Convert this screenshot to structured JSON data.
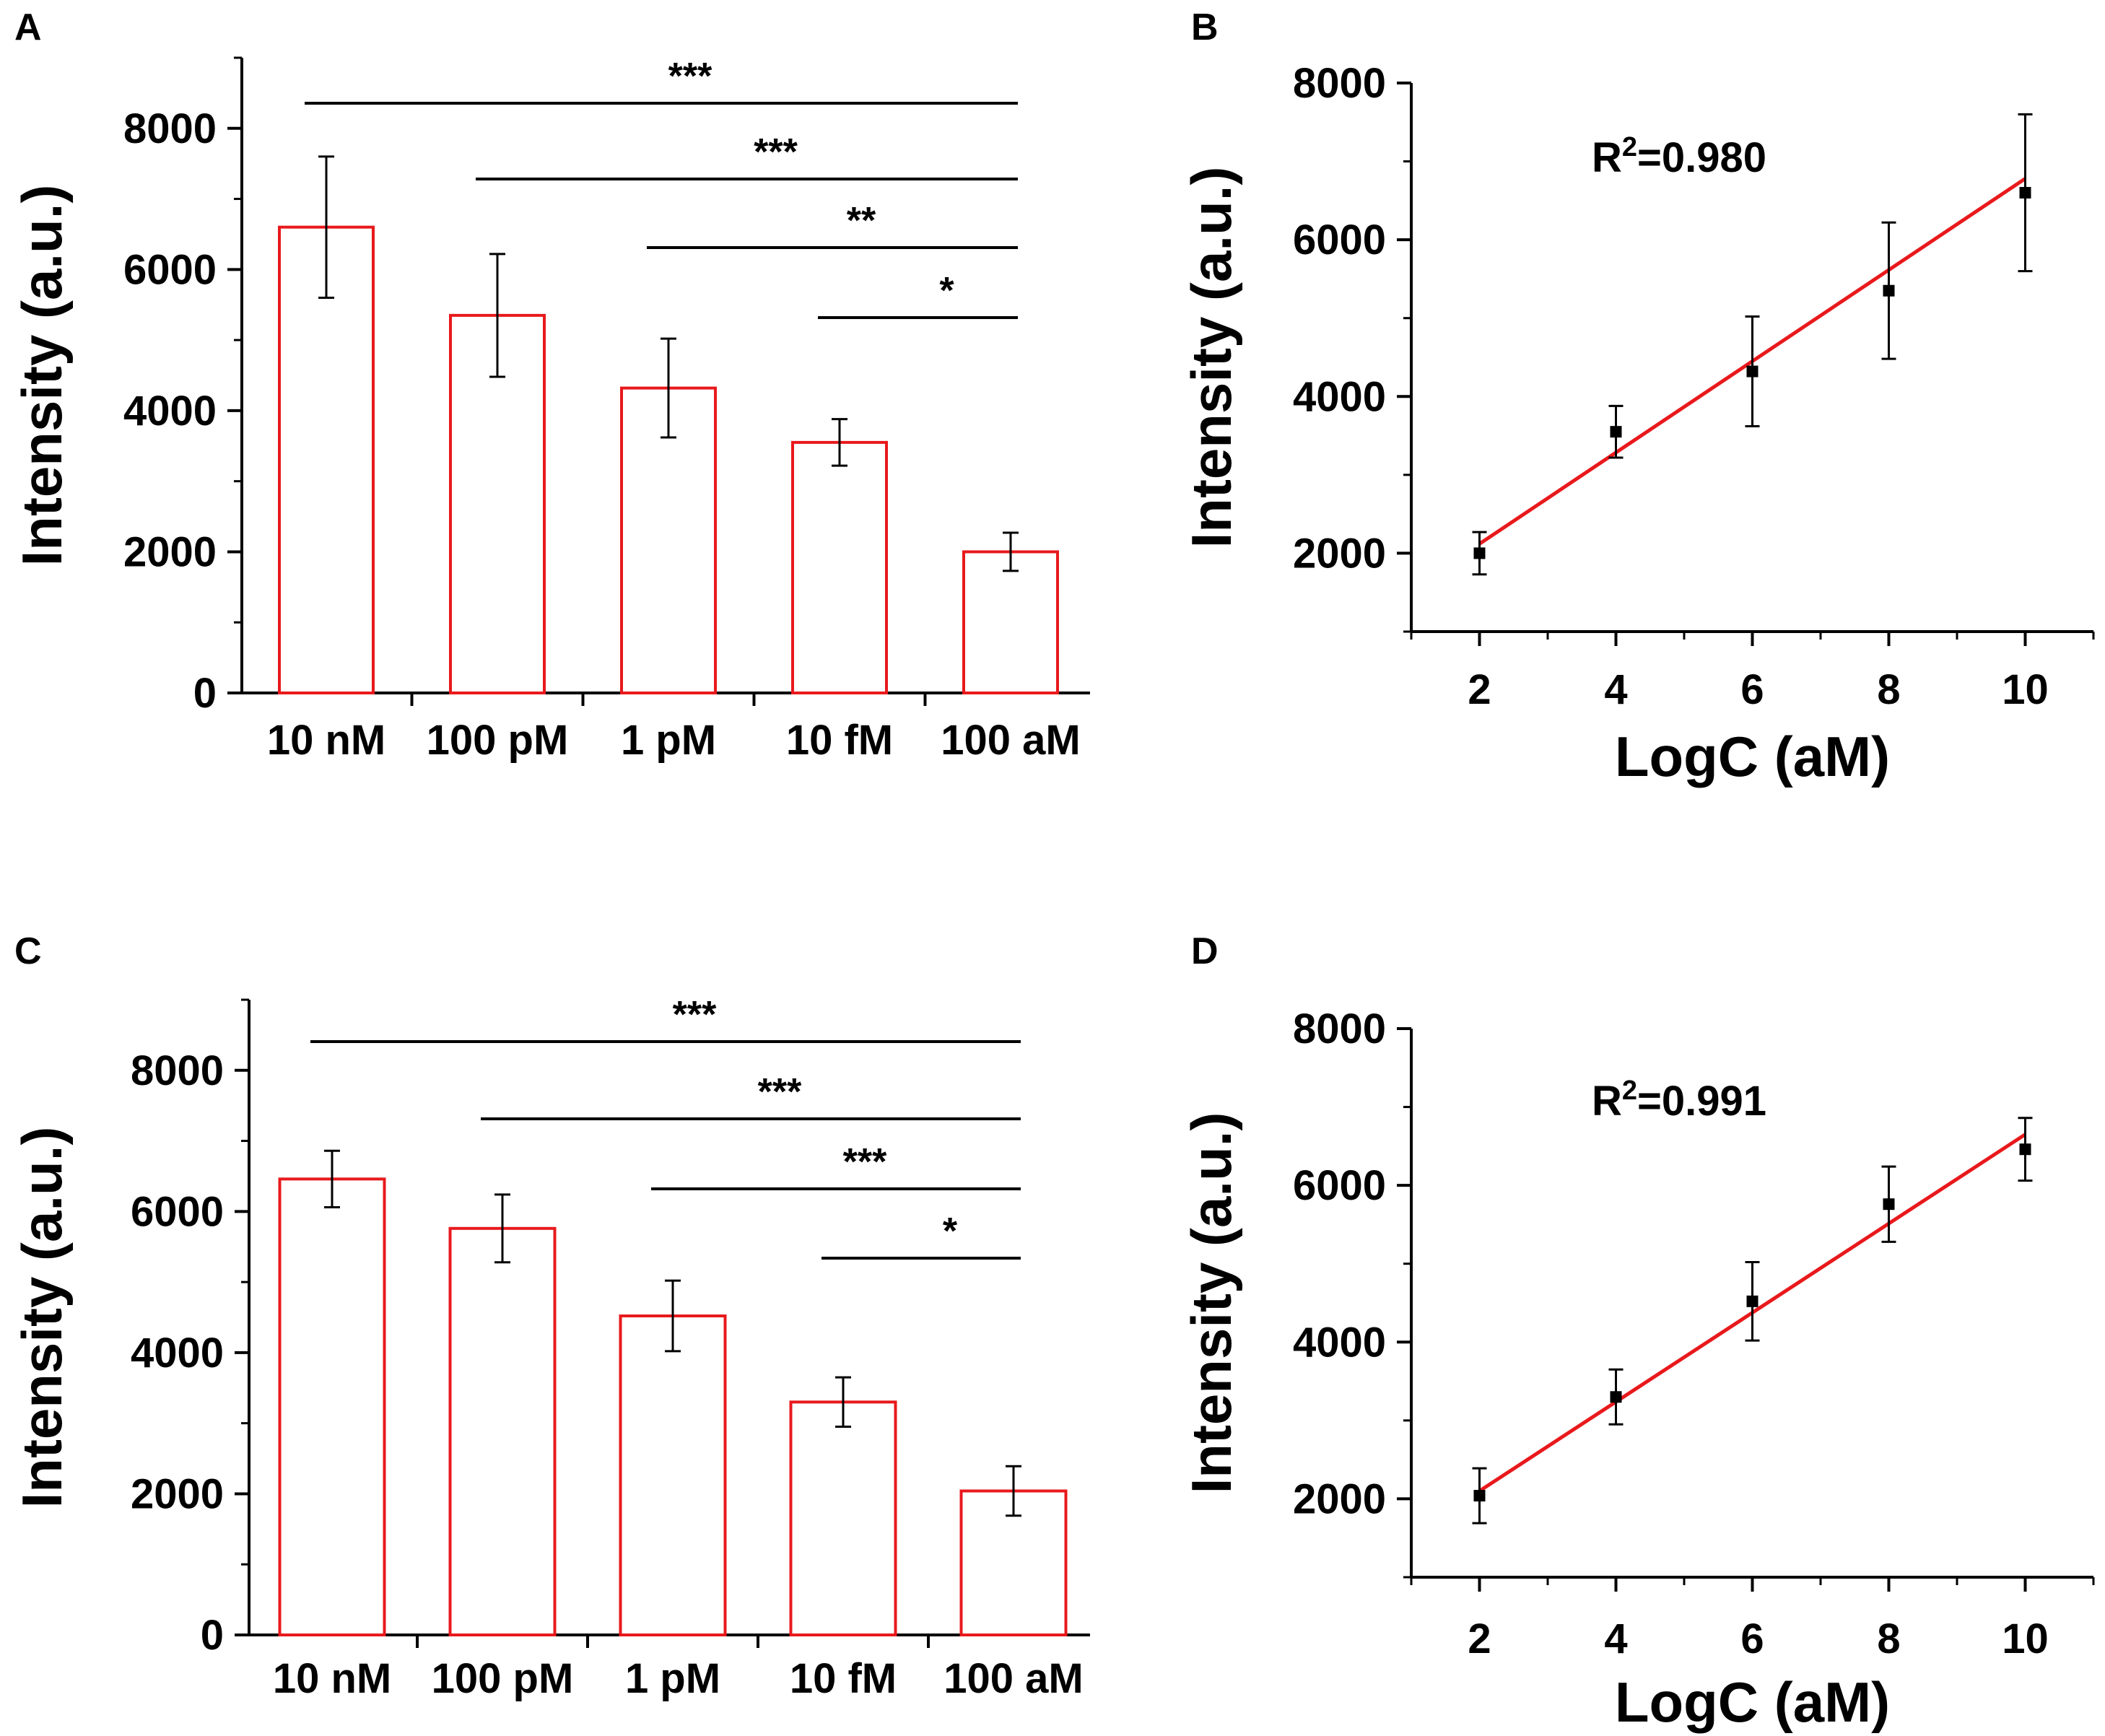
{
  "figure": {
    "panels": [
      {
        "id": "A",
        "letter": "A"
      },
      {
        "id": "B",
        "letter": "B"
      },
      {
        "id": "C",
        "letter": "C"
      },
      {
        "id": "D",
        "letter": "D"
      }
    ]
  },
  "colors": {
    "bar": "#e8191c",
    "fit": "#e8191c",
    "ink": "#000000"
  },
  "chart_data": [
    {
      "panel": "A",
      "type": "bar",
      "title": "",
      "xlabel": "",
      "ylabel": "Intensity (a.u.)",
      "ylim": [
        0,
        9000
      ],
      "yticks": [
        0,
        2000,
        4000,
        6000,
        8000
      ],
      "ytick_labels": [
        "0",
        "2000",
        "4000",
        "6000",
        "8000"
      ],
      "categories": [
        "10 nM",
        "100 pM",
        "1 pM",
        "10 fM",
        "100 aM"
      ],
      "values": [
        6600,
        5350,
        4320,
        3550,
        2000
      ],
      "errors": [
        1000,
        870,
        700,
        330,
        270
      ],
      "significance": [
        {
          "from": 0,
          "to": 4,
          "label": "***"
        },
        {
          "from": 1,
          "to": 4,
          "label": "***"
        },
        {
          "from": 2,
          "to": 4,
          "label": "**"
        },
        {
          "from": 3,
          "to": 4,
          "label": "*"
        }
      ]
    },
    {
      "panel": "B",
      "type": "scatter",
      "title": "",
      "xlabel": "LogC (aM)",
      "ylabel": "Intensity (a.u.)",
      "xlim": [
        1,
        11
      ],
      "ylim": [
        1000,
        8000
      ],
      "xticks": [
        2,
        4,
        6,
        8,
        10
      ],
      "xtick_labels": [
        "2",
        "4",
        "6",
        "8",
        "10"
      ],
      "yticks": [
        2000,
        4000,
        6000,
        8000
      ],
      "ytick_labels": [
        "2000",
        "4000",
        "6000",
        "8000"
      ],
      "x": [
        2,
        4,
        6,
        8,
        10
      ],
      "y": [
        2000,
        3550,
        4320,
        5350,
        6600
      ],
      "errors": [
        270,
        330,
        700,
        870,
        1000
      ],
      "fit_line": {
        "x": [
          2,
          10
        ],
        "y": [
          2120,
          6780
        ]
      },
      "annotation": {
        "r2_prefix": "R",
        "r2_sup": "2",
        "r2_value": "=0.980"
      }
    },
    {
      "panel": "C",
      "type": "bar",
      "title": "",
      "xlabel": "",
      "ylabel": "Intensity (a.u.)",
      "ylim": [
        0,
        9000
      ],
      "yticks": [
        0,
        2000,
        4000,
        6000,
        8000
      ],
      "ytick_labels": [
        "0",
        "2000",
        "4000",
        "6000",
        "8000"
      ],
      "categories": [
        "10 nM",
        "100 pM",
        "1 pM",
        "10 fM",
        "100 aM"
      ],
      "values": [
        6460,
        5760,
        4520,
        3300,
        2040
      ],
      "errors": [
        400,
        480,
        500,
        350,
        350
      ],
      "significance": [
        {
          "from": 0,
          "to": 4,
          "label": "***"
        },
        {
          "from": 1,
          "to": 4,
          "label": "***"
        },
        {
          "from": 2,
          "to": 4,
          "label": "***"
        },
        {
          "from": 3,
          "to": 4,
          "label": "*"
        }
      ]
    },
    {
      "panel": "D",
      "type": "scatter",
      "title": "",
      "xlabel": "LogC (aM)",
      "ylabel": "Intensity (a.u.)",
      "xlim": [
        1,
        11
      ],
      "ylim": [
        1000,
        8000
      ],
      "xticks": [
        2,
        4,
        6,
        8,
        10
      ],
      "xtick_labels": [
        "2",
        "4",
        "6",
        "8",
        "10"
      ],
      "yticks": [
        2000,
        4000,
        6000,
        8000
      ],
      "ytick_labels": [
        "2000",
        "4000",
        "6000",
        "8000"
      ],
      "x": [
        2,
        4,
        6,
        8,
        10
      ],
      "y": [
        2040,
        3300,
        4520,
        5760,
        6460
      ],
      "errors": [
        350,
        350,
        500,
        480,
        400
      ],
      "fit_line": {
        "x": [
          2,
          10
        ],
        "y": [
          2100,
          6650
        ]
      },
      "annotation": {
        "r2_prefix": "R",
        "r2_sup": "2",
        "r2_value": "=0.991"
      }
    }
  ]
}
